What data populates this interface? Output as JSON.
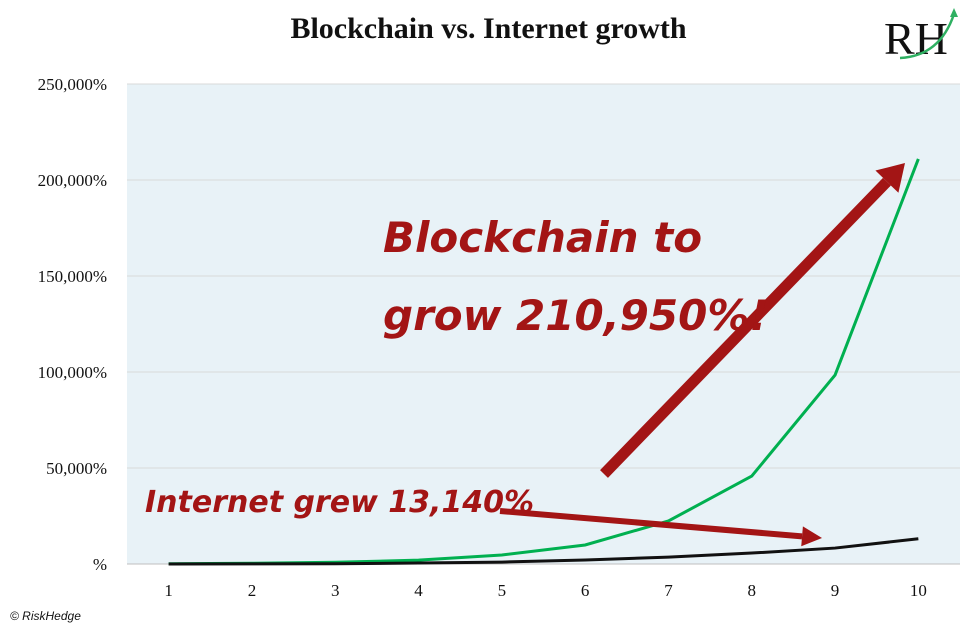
{
  "chart_data": {
    "type": "line",
    "title": "Blockchain vs. Internet growth",
    "xlabel": "",
    "ylabel": "",
    "categories": [
      "1",
      "2",
      "3",
      "4",
      "5",
      "6",
      "7",
      "8",
      "9",
      "10"
    ],
    "ylim": [
      0,
      250000
    ],
    "yticks": [
      "%",
      "50,000%",
      "100,000%",
      "150,000%",
      "200,000%",
      "250,000%"
    ],
    "grid": true,
    "series": [
      {
        "color": "#00b050",
        "values": [
          100,
          400,
          900,
          2000,
          4700,
          9900,
          22400,
          45800,
          98400,
          210950
        ]
      },
      {
        "color": "#111111",
        "values": [
          0,
          50,
          150,
          500,
          1000,
          2100,
          3600,
          5700,
          8300,
          13140
        ]
      }
    ],
    "annotations": {
      "blockchain_line1": "Blockchain to",
      "blockchain_line2": "grow 210,950%!",
      "internet": "Internet grew 13,140%"
    },
    "annotation_color": "#a31515",
    "plot_background": "#e8f2f7"
  },
  "logo_text": "RH",
  "copyright": "© RiskHedge"
}
